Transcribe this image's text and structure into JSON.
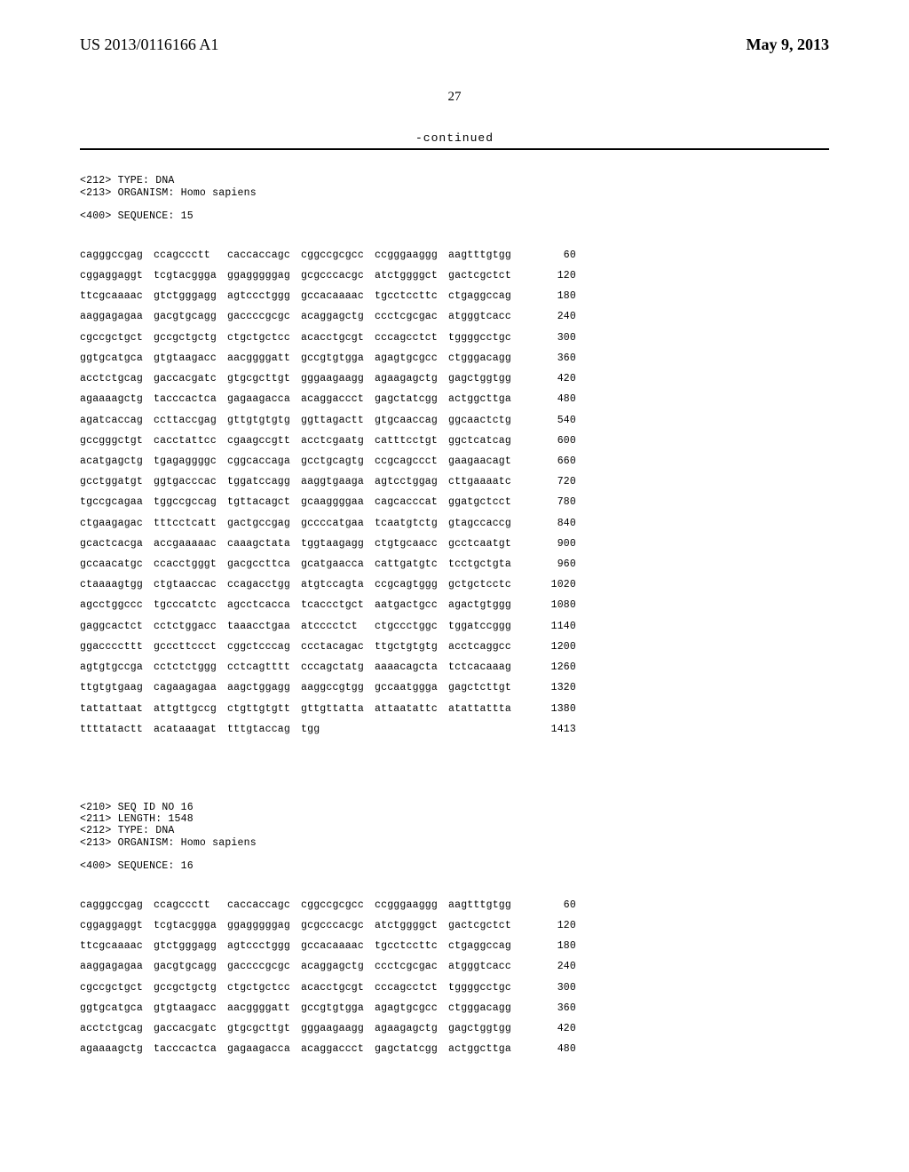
{
  "header": {
    "left": "US 2013/0116166 A1",
    "right": "May 9, 2013"
  },
  "page_number": "27",
  "continued_label": "-continued",
  "seq15": {
    "meta_lines": [
      "<212> TYPE: DNA",
      "<213> ORGANISM: Homo sapiens",
      "",
      "<400> SEQUENCE: 15"
    ],
    "rows": [
      {
        "g": [
          "cagggccgag",
          "ccagccctt",
          "caccaccagc",
          "cggccgcgcc",
          "ccgggaaggg",
          "aagtttgtgg"
        ],
        "p": "60"
      },
      {
        "g": [
          "cggaggaggt",
          "tcgtacggga",
          "ggagggggag",
          "gcgcccacgc",
          "atctggggct",
          "gactcgctct"
        ],
        "p": "120"
      },
      {
        "g": [
          "ttcgcaaaac",
          "gtctgggagg",
          "agtccctggg",
          "gccacaaaac",
          "tgcctccttc",
          "ctgaggccag"
        ],
        "p": "180"
      },
      {
        "g": [
          "aaggagagaa",
          "gacgtgcagg",
          "gaccccgcgc",
          "acaggagctg",
          "ccctcgcgac",
          "atgggtcacc"
        ],
        "p": "240"
      },
      {
        "g": [
          "cgccgctgct",
          "gccgctgctg",
          "ctgctgctcc",
          "acacctgcgt",
          "cccagcctct",
          "tggggcctgc"
        ],
        "p": "300"
      },
      {
        "g": [
          "ggtgcatgca",
          "gtgtaagacc",
          "aacggggatt",
          "gccgtgtgga",
          "agagtgcgcc",
          "ctgggacagg"
        ],
        "p": "360"
      },
      {
        "g": [
          "acctctgcag",
          "gaccacgatc",
          "gtgcgcttgt",
          "gggaagaagg",
          "agaagagctg",
          "gagctggtgg"
        ],
        "p": "420"
      },
      {
        "g": [
          "agaaaagctg",
          "tacccactca",
          "gagaagacca",
          "acaggaccct",
          "gagctatcgg",
          "actggcttga"
        ],
        "p": "480"
      },
      {
        "g": [
          "agatcaccag",
          "ccttaccgag",
          "gttgtgtgtg",
          "ggttagactt",
          "gtgcaaccag",
          "ggcaactctg"
        ],
        "p": "540"
      },
      {
        "g": [
          "gccgggctgt",
          "cacctattcc",
          "cgaagccgtt",
          "acctcgaatg",
          "catttcctgt",
          "ggctcatcag"
        ],
        "p": "600"
      },
      {
        "g": [
          "acatgagctg",
          "tgagaggggc",
          "cggcaccaga",
          "gcctgcagtg",
          "ccgcagccct",
          "gaagaacagt"
        ],
        "p": "660"
      },
      {
        "g": [
          "gcctggatgt",
          "ggtgacccac",
          "tggatccagg",
          "aaggtgaaga",
          "agtcctggag",
          "cttgaaaatc"
        ],
        "p": "720"
      },
      {
        "g": [
          "tgccgcagaa",
          "tggccgccag",
          "tgttacagct",
          "gcaaggggaa",
          "cagcacccat",
          "ggatgctcct"
        ],
        "p": "780"
      },
      {
        "g": [
          "ctgaagagac",
          "tttcctcatt",
          "gactgccgag",
          "gccccatgaa",
          "tcaatgtctg",
          "gtagccaccg"
        ],
        "p": "840"
      },
      {
        "g": [
          "gcactcacga",
          "accgaaaaac",
          "caaagctata",
          "tggtaagagg",
          "ctgtgcaacc",
          "gcctcaatgt"
        ],
        "p": "900"
      },
      {
        "g": [
          "gccaacatgc",
          "ccacctgggt",
          "gacgccttca",
          "gcatgaacca",
          "cattgatgtc",
          "tcctgctgta"
        ],
        "p": "960"
      },
      {
        "g": [
          "ctaaaagtgg",
          "ctgtaaccac",
          "ccagacctgg",
          "atgtccagta",
          "ccgcagtggg",
          "gctgctcctc"
        ],
        "p": "1020"
      },
      {
        "g": [
          "agcctggccc",
          "tgcccatctc",
          "agcctcacca",
          "tcaccctgct",
          "aatgactgcc",
          "agactgtggg"
        ],
        "p": "1080"
      },
      {
        "g": [
          "gaggcactct",
          "cctctggacc",
          "taaacctgaa",
          "atcccctct",
          "ctgccctggc",
          "tggatccggg"
        ],
        "p": "1140"
      },
      {
        "g": [
          "ggaccccttt",
          "gcccttccct",
          "cggctcccag",
          "ccctacagac",
          "ttgctgtgtg",
          "acctcaggcc"
        ],
        "p": "1200"
      },
      {
        "g": [
          "agtgtgccga",
          "cctctctggg",
          "cctcagtttt",
          "cccagctatg",
          "aaaacagcta",
          "tctcacaaag"
        ],
        "p": "1260"
      },
      {
        "g": [
          "ttgtgtgaag",
          "cagaagagaa",
          "aagctggagg",
          "aaggccgtgg",
          "gccaatggga",
          "gagctcttgt"
        ],
        "p": "1320"
      },
      {
        "g": [
          "tattattaat",
          "attgttgccg",
          "ctgttgtgtt",
          "gttgttatta",
          "attaatattc",
          "atattattta"
        ],
        "p": "1380"
      },
      {
        "g": [
          "ttttatactt",
          "acataaagat",
          "tttgtaccag",
          "tgg",
          "",
          ""
        ],
        "p": "1413"
      }
    ]
  },
  "seq16": {
    "meta_lines": [
      "<210> SEQ ID NO 16",
      "<211> LENGTH: 1548",
      "<212> TYPE: DNA",
      "<213> ORGANISM: Homo sapiens",
      "",
      "<400> SEQUENCE: 16"
    ],
    "rows": [
      {
        "g": [
          "cagggccgag",
          "ccagccctt",
          "caccaccagc",
          "cggccgcgcc",
          "ccgggaaggg",
          "aagtttgtgg"
        ],
        "p": "60"
      },
      {
        "g": [
          "cggaggaggt",
          "tcgtacggga",
          "ggagggggag",
          "gcgcccacgc",
          "atctggggct",
          "gactcgctct"
        ],
        "p": "120"
      },
      {
        "g": [
          "ttcgcaaaac",
          "gtctgggagg",
          "agtccctggg",
          "gccacaaaac",
          "tgcctccttc",
          "ctgaggccag"
        ],
        "p": "180"
      },
      {
        "g": [
          "aaggagagaa",
          "gacgtgcagg",
          "gaccccgcgc",
          "acaggagctg",
          "ccctcgcgac",
          "atgggtcacc"
        ],
        "p": "240"
      },
      {
        "g": [
          "cgccgctgct",
          "gccgctgctg",
          "ctgctgctcc",
          "acacctgcgt",
          "cccagcctct",
          "tggggcctgc"
        ],
        "p": "300"
      },
      {
        "g": [
          "ggtgcatgca",
          "gtgtaagacc",
          "aacggggatt",
          "gccgtgtgga",
          "agagtgcgcc",
          "ctgggacagg"
        ],
        "p": "360"
      },
      {
        "g": [
          "acctctgcag",
          "gaccacgatc",
          "gtgcgcttgt",
          "gggaagaagg",
          "agaagagctg",
          "gagctggtgg"
        ],
        "p": "420"
      },
      {
        "g": [
          "agaaaagctg",
          "tacccactca",
          "gagaagacca",
          "acaggaccct",
          "gagctatcgg",
          "actggcttga"
        ],
        "p": "480"
      }
    ]
  }
}
